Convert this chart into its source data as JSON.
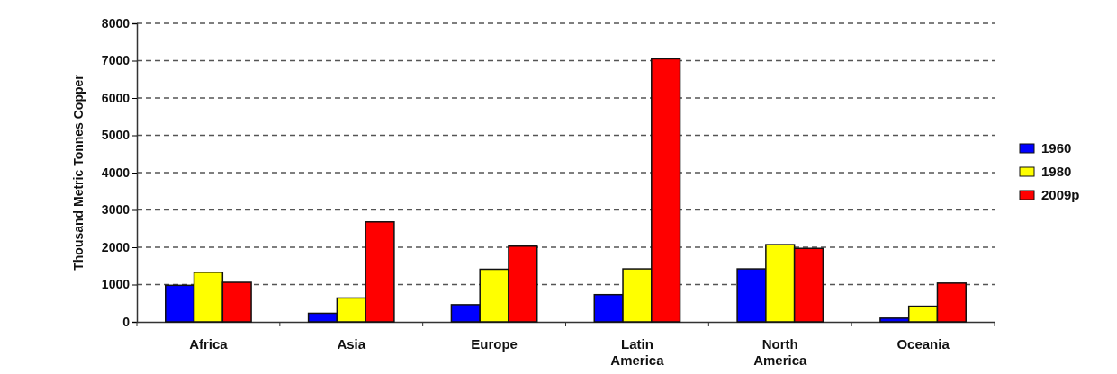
{
  "chart_data": {
    "type": "bar",
    "ylabel": "Thousand Metric Tonnes Copper",
    "categories": [
      "Africa",
      "Asia",
      "Europe",
      "Latin America",
      "North America",
      "Oceania"
    ],
    "series": [
      {
        "name": "1960",
        "color": "#0000ff",
        "values": [
          980,
          230,
          460,
          730,
          1420,
          100
        ]
      },
      {
        "name": "1980",
        "color": "#ffff00",
        "values": [
          1330,
          640,
          1410,
          1420,
          2070,
          420
        ]
      },
      {
        "name": "2009p",
        "color": "#ff0000",
        "values": [
          1060,
          2680,
          2030,
          7050,
          1970,
          1040
        ]
      }
    ],
    "ylim": [
      0,
      8000
    ],
    "yticks": [
      0,
      1000,
      2000,
      3000,
      4000,
      5000,
      6000,
      7000,
      8000
    ],
    "grid": "y",
    "legend": "right"
  }
}
